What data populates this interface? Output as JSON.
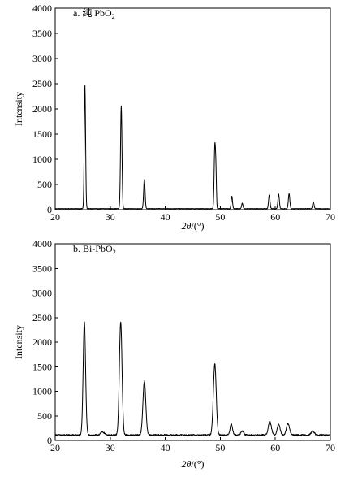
{
  "chart_data": [
    {
      "type": "line",
      "panel_label": {
        "prefix": "a. 纯 PbO",
        "subscript": "2"
      },
      "xlabel": {
        "italic_part": "2θ",
        "rest": "/(°)"
      },
      "ylabel": "Intensity",
      "xlim": [
        20,
        70
      ],
      "ylim": [
        0,
        4000
      ],
      "x_ticks": [
        20,
        30,
        40,
        50,
        60,
        70
      ],
      "y_ticks": [
        0,
        500,
        1000,
        1500,
        2000,
        2500,
        3000,
        3500,
        4000
      ],
      "grid": false,
      "series": [
        {
          "baseline": 20,
          "noise": 4,
          "peaks": [
            {
              "x": 25.4,
              "height": 2460,
              "width": 0.12
            },
            {
              "x": 32.0,
              "height": 2040,
              "width": 0.13
            },
            {
              "x": 36.2,
              "height": 590,
              "width": 0.13
            },
            {
              "x": 49.0,
              "height": 1200,
              "width": 0.12
            },
            {
              "x": 49.2,
              "height": 650,
              "width": 0.1
            },
            {
              "x": 52.1,
              "height": 250,
              "width": 0.12
            },
            {
              "x": 54.0,
              "height": 110,
              "width": 0.12
            },
            {
              "x": 58.9,
              "height": 270,
              "width": 0.13
            },
            {
              "x": 60.6,
              "height": 290,
              "width": 0.13
            },
            {
              "x": 62.5,
              "height": 300,
              "width": 0.13
            },
            {
              "x": 66.9,
              "height": 140,
              "width": 0.13
            }
          ]
        }
      ]
    },
    {
      "type": "line",
      "panel_label": {
        "prefix": "b. Bi-PbO",
        "subscript": "2"
      },
      "xlabel": {
        "italic_part": "2θ",
        "rest": "/(°)"
      },
      "ylabel": "Intensity",
      "xlim": [
        20,
        70
      ],
      "ylim": [
        0,
        4000
      ],
      "x_ticks": [
        20,
        30,
        40,
        50,
        60,
        70
      ],
      "y_ticks": [
        0,
        500,
        1000,
        1500,
        2000,
        2500,
        3000,
        3500,
        4000
      ],
      "grid": false,
      "series": [
        {
          "baseline": 110,
          "noise": 14,
          "peaks": [
            {
              "x": 25.3,
              "height": 2300,
              "width": 0.22
            },
            {
              "x": 28.6,
              "height": 60,
              "width": 0.35
            },
            {
              "x": 31.9,
              "height": 2300,
              "width": 0.24
            },
            {
              "x": 36.2,
              "height": 1100,
              "width": 0.26
            },
            {
              "x": 49.0,
              "height": 1450,
              "width": 0.26
            },
            {
              "x": 52.0,
              "height": 230,
              "width": 0.22
            },
            {
              "x": 54.0,
              "height": 80,
              "width": 0.25
            },
            {
              "x": 59.0,
              "height": 270,
              "width": 0.28
            },
            {
              "x": 60.6,
              "height": 220,
              "width": 0.26
            },
            {
              "x": 62.3,
              "height": 230,
              "width": 0.28
            },
            {
              "x": 66.8,
              "height": 80,
              "width": 0.28
            }
          ]
        }
      ]
    }
  ]
}
